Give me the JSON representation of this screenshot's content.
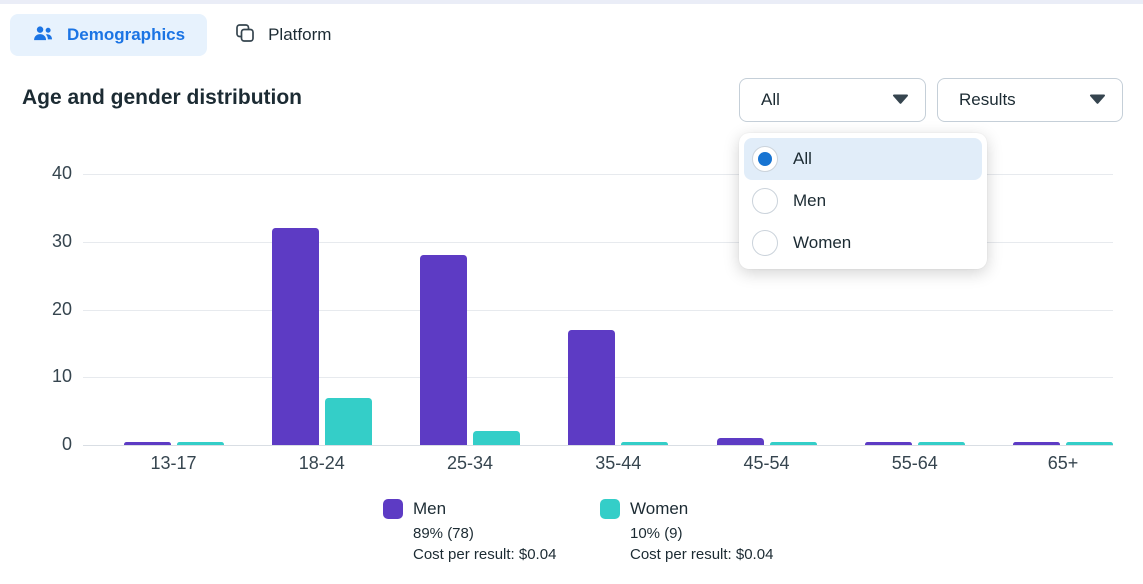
{
  "tabs": [
    {
      "label": "Demographics",
      "active": true
    },
    {
      "label": "Platform",
      "active": false
    }
  ],
  "header": {
    "title": "Age and gender distribution"
  },
  "filters": {
    "breakdown": {
      "value": "All"
    },
    "metric": {
      "value": "Results"
    }
  },
  "breakdown_menu": {
    "options": [
      {
        "label": "All",
        "selected": true
      },
      {
        "label": "Men",
        "selected": false
      },
      {
        "label": "Women",
        "selected": false
      }
    ]
  },
  "chart_data": {
    "type": "bar",
    "title": "Age and gender distribution",
    "categories": [
      "13-17",
      "18-24",
      "25-34",
      "35-44",
      "45-54",
      "55-64",
      "65+"
    ],
    "series": [
      {
        "name": "Men",
        "color": "#5d3bc4",
        "values": [
          0,
          32,
          28,
          17,
          1,
          0,
          0
        ]
      },
      {
        "name": "Women",
        "color": "#34cec8",
        "values": [
          0,
          7,
          2,
          0,
          0,
          0,
          0
        ]
      }
    ],
    "ylim": [
      0,
      44
    ],
    "yticks": [
      0,
      10,
      20,
      30,
      40
    ],
    "grid": true,
    "legend_position": "bottom"
  },
  "legend": [
    {
      "name": "Men",
      "share": "89% (78)",
      "cost": "Cost per result: $0.04",
      "color": "#5d3bc4"
    },
    {
      "name": "Women",
      "share": "10% (9)",
      "cost": "Cost per result: $0.04",
      "color": "#34cec8"
    }
  ],
  "colors": {
    "accent_blue": "#1b74e4",
    "tab_active_bg": "#e7f2fd",
    "menu_highlight": "#e1edf9",
    "radio_selected": "#1774d2",
    "men": "#5d3bc4",
    "women": "#34cec8",
    "gridline": "#e7eaee",
    "text_dark": "#1c2b33",
    "text_slate": "#36454f"
  }
}
